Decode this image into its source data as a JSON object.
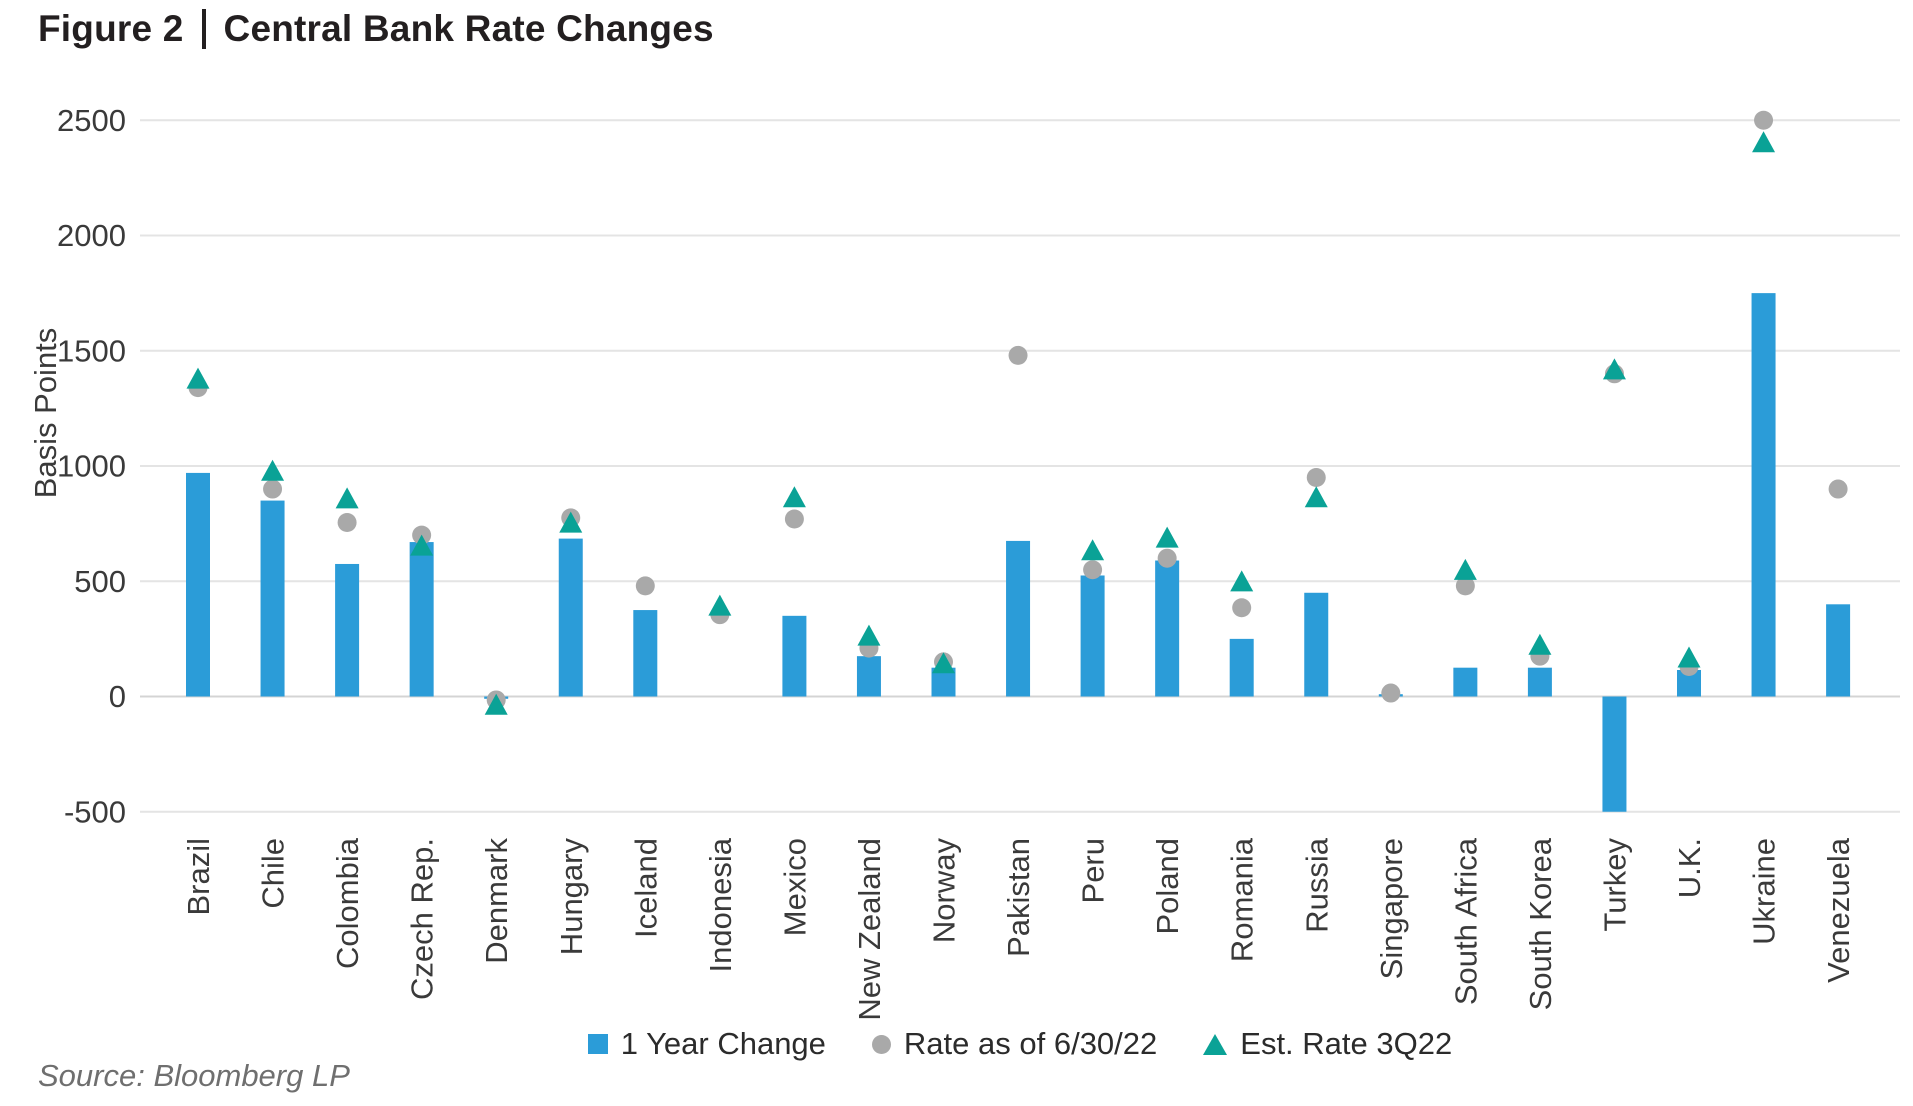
{
  "figure": {
    "label": "Figure 2",
    "separator": "|",
    "title": "Central Bank Rate Changes",
    "source": "Source: Bloomberg LP"
  },
  "legend": [
    {
      "marker": "square",
      "label": "1 Year Change"
    },
    {
      "marker": "circle",
      "label": "Rate as of 6/30/22"
    },
    {
      "marker": "triangle",
      "label": "Est. Rate 3Q22"
    }
  ],
  "chart_data": {
    "type": "bar",
    "title": "Central Bank Rate Changes",
    "xlabel": "",
    "ylabel": "Basis Points",
    "ylim": [
      -500,
      2500
    ],
    "yticks": [
      -500,
      0,
      500,
      1000,
      1500,
      2000,
      2500
    ],
    "grid": true,
    "legend_position": "bottom",
    "categories": [
      "Brazil",
      "Chile",
      "Colombia",
      "Czech Rep.",
      "Denmark",
      "Hungary",
      "Iceland",
      "Indonesia",
      "Mexico",
      "New Zealand",
      "Norway",
      "Pakistan",
      "Peru",
      "Poland",
      "Romania",
      "Russia",
      "Singapore",
      "South Africa",
      "South Korea",
      "Turkey",
      "U.K.",
      "Ukraine",
      "Venezuela"
    ],
    "series": [
      {
        "name": "1 Year Change",
        "render": "bar",
        "color": "#2b9cd8",
        "values": [
          970,
          850,
          575,
          670,
          -10,
          685,
          375,
          0,
          350,
          175,
          125,
          675,
          525,
          590,
          250,
          450,
          10,
          125,
          125,
          -500,
          115,
          1750,
          400
        ]
      },
      {
        "name": "Rate as of 6/30/22",
        "render": "scatter-circle",
        "color": "#a9a9a9",
        "values": [
          1340,
          900,
          755,
          700,
          -15,
          775,
          480,
          355,
          770,
          210,
          150,
          1480,
          550,
          600,
          385,
          950,
          15,
          480,
          175,
          1400,
          130,
          2500,
          900
        ]
      },
      {
        "name": "Est. Rate 3Q22",
        "render": "scatter-triangle",
        "color": "#0aa296",
        "values": [
          1375,
          975,
          855,
          650,
          -40,
          750,
          null,
          390,
          860,
          260,
          140,
          null,
          630,
          685,
          495,
          860,
          null,
          545,
          220,
          1415,
          165,
          2400,
          null
        ]
      }
    ]
  }
}
